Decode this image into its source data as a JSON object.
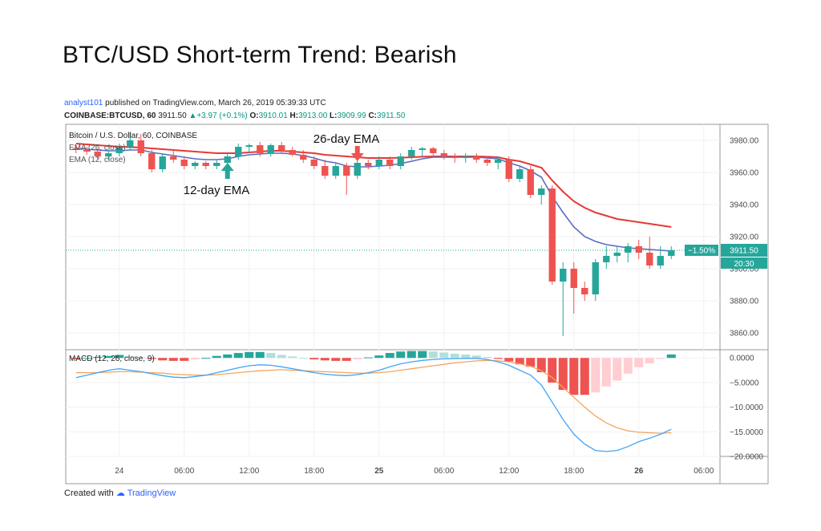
{
  "article_title": "BTC/USD Short-term Trend: Bearish",
  "header": {
    "author": "analyst101",
    "published_text": "published on TradingView.com, March 26, 2019 05:39:33 UTC",
    "symbol": "COINBASE:BTCUSD, 60",
    "last": "3911.50",
    "change": "+3.97 (+0.1%)",
    "o_label": "O:",
    "o": "3910.01",
    "h_label": "H:",
    "h": "3913.00",
    "l_label": "L:",
    "l": "3909.99",
    "c_label": "C:",
    "c": "3911.50"
  },
  "footer": {
    "created_with": "Created with",
    "brand": "TradingView"
  },
  "colors": {
    "bull": "#26a69a",
    "bear": "#ef5350",
    "ema26": "#e53935",
    "ema12": "#5c6bc0",
    "macd": "#42a5f5",
    "signal": "#f4a460",
    "hist_bull_dark": "#26a69a",
    "hist_bull_light": "#b2dfdb",
    "hist_bear_dark": "#ef5350",
    "hist_bear_light": "#ffcdd2",
    "badge": "#26a69a",
    "pct_badge": "#26a69a"
  },
  "chart_data": [
    {
      "type": "candlestick",
      "title": "Bitcoin / U.S. Dollar, 60, COINBASE",
      "indicators": [
        "EMA (26, close)",
        "EMA (12, close)"
      ],
      "annotations": [
        {
          "text": "26-day EMA",
          "arrow": "down",
          "arrow_color": "#ef5350",
          "at_index": 26
        },
        {
          "text": "12-day EMA",
          "arrow": "up",
          "arrow_color": "#26a69a",
          "at_index": 14
        }
      ],
      "ylim": [
        3850,
        3990
      ],
      "yticks": [
        3860,
        3880,
        3900,
        3920,
        3940,
        3960,
        3980
      ],
      "ytick_labels": [
        "3860.00",
        "3880.00",
        "3900.00",
        "3920.00",
        "3940.00",
        "3960.00",
        "3980.00"
      ],
      "xtick_labels": [
        {
          "label": "24",
          "index": 4,
          "bold": false
        },
        {
          "label": "06:00",
          "index": 10,
          "bold": false
        },
        {
          "label": "12:00",
          "index": 16,
          "bold": false
        },
        {
          "label": "18:00",
          "index": 22,
          "bold": false
        },
        {
          "label": "25",
          "index": 28,
          "bold": true
        },
        {
          "label": "06:00",
          "index": 34,
          "bold": false
        },
        {
          "label": "12:00",
          "index": 40,
          "bold": false
        },
        {
          "label": "18:00",
          "index": 46,
          "bold": false
        },
        {
          "label": "26",
          "index": 52,
          "bold": true
        },
        {
          "label": "06:00",
          "index": 58,
          "bold": false
        }
      ],
      "last_price": "3911.50",
      "last_change_pct": "−1.50%",
      "countdown": "20:30",
      "candles": [
        [
          3975,
          3977,
          3972,
          3974
        ],
        [
          3974,
          3976,
          3971,
          3973
        ],
        [
          3973,
          3975,
          3968,
          3970
        ],
        [
          3970,
          3974,
          3968,
          3972
        ],
        [
          3972,
          3978,
          3970,
          3976
        ],
        [
          3976,
          3985,
          3974,
          3980
        ],
        [
          3980,
          3984,
          3970,
          3972
        ],
        [
          3972,
          3974,
          3960,
          3962
        ],
        [
          3962,
          3972,
          3960,
          3970
        ],
        [
          3970,
          3974,
          3966,
          3968
        ],
        [
          3968,
          3970,
          3962,
          3964
        ],
        [
          3964,
          3967,
          3962,
          3966
        ],
        [
          3966,
          3967,
          3962,
          3964
        ],
        [
          3964,
          3968,
          3962,
          3966
        ],
        [
          3966,
          3972,
          3960,
          3970
        ],
        [
          3970,
          3978,
          3968,
          3976
        ],
        [
          3976,
          3978,
          3972,
          3977
        ],
        [
          3977,
          3979,
          3970,
          3972
        ],
        [
          3972,
          3978,
          3970,
          3977
        ],
        [
          3977,
          3979,
          3972,
          3974
        ],
        [
          3974,
          3976,
          3970,
          3971
        ],
        [
          3971,
          3974,
          3966,
          3968
        ],
        [
          3968,
          3970,
          3962,
          3964
        ],
        [
          3964,
          3968,
          3956,
          3958
        ],
        [
          3958,
          3966,
          3956,
          3964
        ],
        [
          3964,
          3966,
          3946,
          3958
        ],
        [
          3958,
          3968,
          3956,
          3966
        ],
        [
          3966,
          3968,
          3962,
          3964
        ],
        [
          3964,
          3970,
          3962,
          3968
        ],
        [
          3968,
          3970,
          3962,
          3964
        ],
        [
          3964,
          3972,
          3962,
          3970
        ],
        [
          3970,
          3976,
          3968,
          3974
        ],
        [
          3974,
          3976,
          3970,
          3975
        ],
        [
          3975,
          3976,
          3970,
          3972
        ],
        [
          3972,
          3974,
          3968,
          3970
        ],
        [
          3970,
          3972,
          3966,
          3969
        ],
        [
          3969,
          3972,
          3966,
          3970
        ],
        [
          3970,
          3972,
          3966,
          3968
        ],
        [
          3968,
          3970,
          3964,
          3966
        ],
        [
          3966,
          3970,
          3962,
          3968
        ],
        [
          3968,
          3970,
          3954,
          3956
        ],
        [
          3956,
          3964,
          3954,
          3962
        ],
        [
          3962,
          3964,
          3944,
          3946
        ],
        [
          3946,
          3952,
          3940,
          3950
        ],
        [
          3950,
          3952,
          3890,
          3892
        ],
        [
          3892,
          3904,
          3858,
          3900
        ],
        [
          3900,
          3904,
          3872,
          3888
        ],
        [
          3888,
          3892,
          3880,
          3884
        ],
        [
          3884,
          3906,
          3880,
          3904
        ],
        [
          3904,
          3914,
          3900,
          3908
        ],
        [
          3908,
          3914,
          3904,
          3910
        ],
        [
          3910,
          3916,
          3904,
          3914
        ],
        [
          3914,
          3918,
          3906,
          3910
        ],
        [
          3910,
          3920,
          3900,
          3902
        ],
        [
          3902,
          3914,
          3900,
          3908
        ],
        [
          3908,
          3914,
          3906,
          3911.5
        ]
      ],
      "ema26": [
        3978,
        3977.5,
        3977,
        3976.5,
        3976,
        3975.8,
        3975.5,
        3975,
        3974.5,
        3974,
        3973.5,
        3973,
        3972.5,
        3972,
        3972,
        3972,
        3972.5,
        3973,
        3973.5,
        3973.5,
        3973,
        3972.5,
        3972,
        3971,
        3970.5,
        3970,
        3969.5,
        3969,
        3969,
        3969,
        3969.2,
        3969.5,
        3969.8,
        3970,
        3970,
        3970,
        3970,
        3970,
        3969.8,
        3969.5,
        3968,
        3967,
        3965,
        3963,
        3955,
        3948,
        3942,
        3938,
        3935,
        3933,
        3931,
        3930,
        3929,
        3928,
        3927,
        3926
      ],
      "ema12": [
        3975,
        3974.5,
        3974,
        3973.5,
        3973.5,
        3974,
        3974,
        3972.5,
        3971.5,
        3970.5,
        3969.5,
        3968.5,
        3968,
        3968,
        3968.5,
        3970,
        3971,
        3971.5,
        3972,
        3972,
        3971.5,
        3970.5,
        3969,
        3967,
        3966,
        3964,
        3963.5,
        3963.5,
        3964,
        3964.5,
        3965.5,
        3967,
        3968.5,
        3969.5,
        3969.5,
        3969.5,
        3969.5,
        3969.5,
        3969,
        3968.5,
        3966,
        3964,
        3961,
        3957,
        3945,
        3935,
        3926,
        3920,
        3917,
        3915,
        3914,
        3913,
        3912.5,
        3912,
        3911.5,
        3911
      ]
    },
    {
      "type": "macd",
      "title": "MACD (12, 26, close, 9)",
      "ylim": [
        -20,
        1.5
      ],
      "yticks": [
        0,
        -5,
        -10,
        -15,
        -20
      ],
      "ytick_labels": [
        "0.0000",
        "−5.0000",
        "−10.0000",
        "−15.0000",
        "−20.0000"
      ],
      "macd": [
        -4,
        -3.5,
        -3,
        -2.5,
        -2.2,
        -2.5,
        -2.8,
        -3.2,
        -3.6,
        -3.9,
        -4,
        -3.8,
        -3.5,
        -3,
        -2.5,
        -2,
        -1.6,
        -1.4,
        -1.5,
        -1.8,
        -2.2,
        -2.6,
        -3,
        -3.3,
        -3.5,
        -3.6,
        -3.4,
        -3,
        -2.5,
        -1.8,
        -1.2,
        -0.8,
        -0.5,
        -0.3,
        -0.2,
        -0.15,
        -0.1,
        -0.1,
        -0.3,
        -0.8,
        -1.5,
        -2.5,
        -3.5,
        -5.5,
        -9,
        -12.5,
        -15.5,
        -17.5,
        -18.8,
        -19,
        -18.8,
        -18,
        -17,
        -16.3,
        -15.5,
        -14.5
      ],
      "signal": [
        -3,
        -3,
        -3,
        -2.9,
        -2.8,
        -2.8,
        -2.9,
        -3,
        -3.1,
        -3.3,
        -3.4,
        -3.5,
        -3.5,
        -3.4,
        -3.2,
        -3,
        -2.8,
        -2.6,
        -2.5,
        -2.4,
        -2.5,
        -2.6,
        -2.7,
        -2.8,
        -2.9,
        -3,
        -3.1,
        -3.1,
        -3,
        -2.8,
        -2.5,
        -2.2,
        -1.9,
        -1.6,
        -1.3,
        -1,
        -0.8,
        -0.6,
        -0.5,
        -0.6,
        -0.8,
        -1.2,
        -1.7,
        -2.6,
        -4,
        -6,
        -8,
        -10,
        -11.8,
        -13.2,
        -14.2,
        -14.8,
        -15.1,
        -15.2,
        -15.3,
        -15.2
      ],
      "histogram": [
        -0.2,
        0,
        0.2,
        0.4,
        0.6,
        0.3,
        0.1,
        -0.2,
        -0.5,
        -0.6,
        -0.6,
        -0.3,
        0,
        0.4,
        0.7,
        1,
        1.2,
        1.2,
        1,
        0.6,
        0.3,
        0,
        -0.3,
        -0.5,
        -0.6,
        -0.6,
        -0.3,
        0.1,
        0.5,
        1,
        1.3,
        1.4,
        1.4,
        1.3,
        1.1,
        0.85,
        0.7,
        0.5,
        0.2,
        -0.2,
        -0.7,
        -1.3,
        -1.8,
        -2.9,
        -5,
        -6.5,
        -7.5,
        -7.5,
        -7,
        -5.8,
        -4.6,
        -3.2,
        -1.9,
        -1.1,
        -0.2,
        0.7
      ]
    }
  ]
}
